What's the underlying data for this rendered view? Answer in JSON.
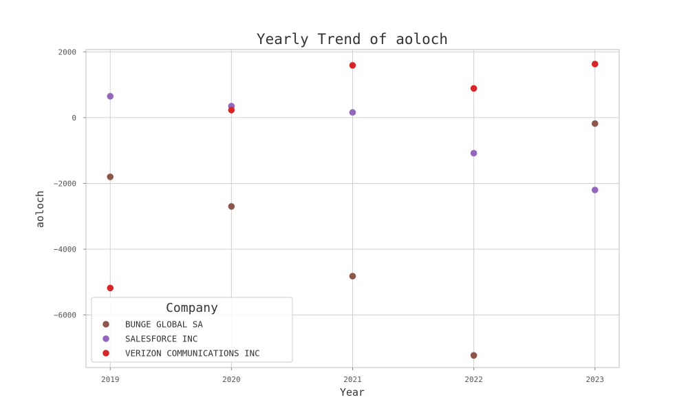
{
  "chart_data": {
    "type": "scatter",
    "title": "Yearly Trend of aoloch",
    "xlabel": "Year",
    "ylabel": "aoloch",
    "x": [
      2019,
      2020,
      2021,
      2022,
      2023
    ],
    "x_tick_labels": [
      "2019",
      "2020",
      "2021",
      "2022",
      "2023"
    ],
    "y_ticks": [
      2000,
      0,
      -2000,
      -4000,
      -6000
    ],
    "y_tick_labels": [
      "2000",
      "0",
      "−2000",
      "−4000",
      "−6000"
    ],
    "xlim": [
      2018.8,
      2023.2
    ],
    "ylim": [
      -7600,
      2070
    ],
    "grid": true,
    "legend": {
      "title": "Company",
      "placement": "lower-left"
    },
    "series": [
      {
        "name": "BUNGE GLOBAL SA",
        "color": "#8c564b",
        "values": [
          -1800,
          -2700,
          -4820,
          -7230,
          -180
        ]
      },
      {
        "name": "SALESFORCE INC",
        "color": "#9467bd",
        "values": [
          650,
          350,
          160,
          -1080,
          -2200
        ]
      },
      {
        "name": "VERIZON COMMUNICATIONS INC",
        "color": "#d62728",
        "values": [
          -5180,
          230,
          1590,
          890,
          1630
        ]
      }
    ]
  }
}
